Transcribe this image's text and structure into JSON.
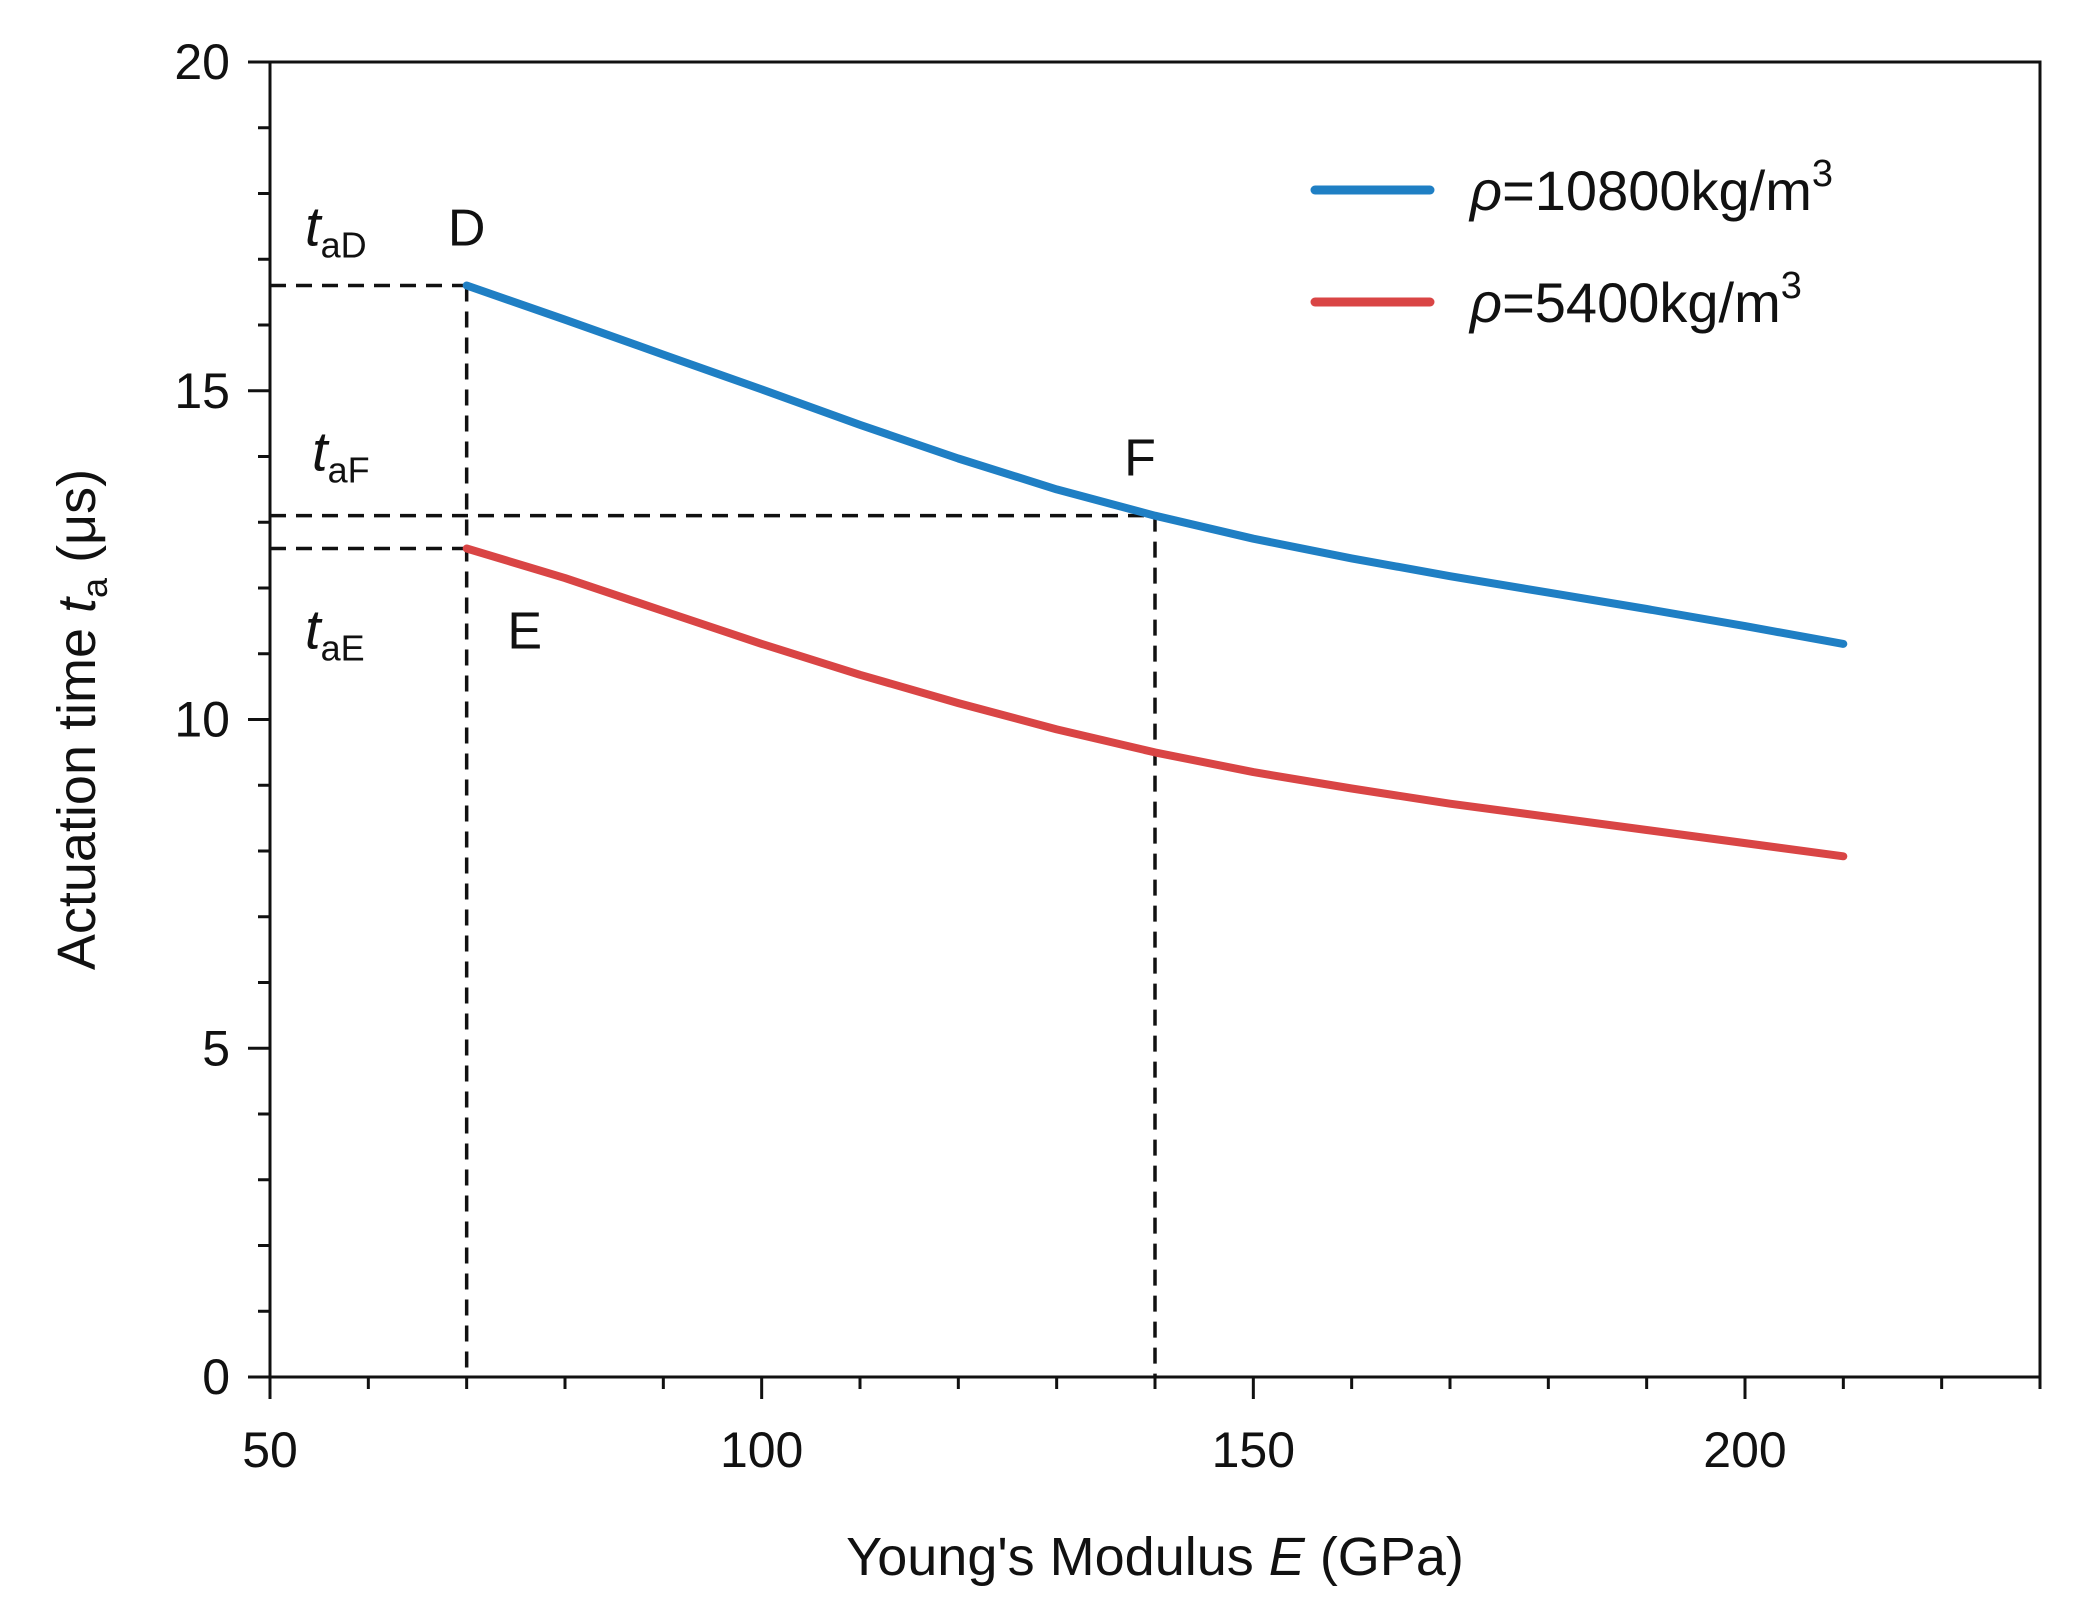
{
  "chart_data": {
    "type": "line",
    "title": "",
    "xlabel": {
      "prefix": "Young's Modulus ",
      "var": "E",
      "suffix": " (GPa)"
    },
    "ylabel": {
      "prefix": "Actuation time ",
      "var": "t",
      "sub": "a",
      "suffix": " (μs)"
    },
    "xlim": [
      50,
      230
    ],
    "ylim": [
      0,
      20
    ],
    "x_ticks": [
      50,
      100,
      150,
      200
    ],
    "x_tick_labels": [
      "50",
      "100",
      "150",
      "200"
    ],
    "x_minor_step": 10,
    "y_ticks": [
      0,
      5,
      10,
      15,
      20
    ],
    "y_tick_labels": [
      "0",
      "5",
      "10",
      "15",
      "20"
    ],
    "y_minor_step": 1,
    "grid": false,
    "legend_position": "top-right",
    "series": [
      {
        "name": "ρ=10800kg/m3",
        "legend": {
          "var": "ρ",
          "text": "=10800kg/m",
          "sup": "3"
        },
        "color": "#1f7fc4",
        "x": [
          70,
          80,
          90,
          100,
          110,
          120,
          130,
          140,
          150,
          160,
          170,
          180,
          190,
          200,
          210
        ],
        "y": [
          16.6,
          16.08,
          15.55,
          15.02,
          14.48,
          13.97,
          13.5,
          13.1,
          12.75,
          12.45,
          12.18,
          11.93,
          11.68,
          11.42,
          11.15
        ]
      },
      {
        "name": "ρ=5400kg/m3",
        "legend": {
          "var": "ρ",
          "text": "=5400kg/m",
          "sup": "3"
        },
        "color": "#d94545",
        "x": [
          70,
          80,
          90,
          100,
          110,
          120,
          130,
          140,
          150,
          160,
          170,
          180,
          190,
          200,
          210
        ],
        "y": [
          12.6,
          12.15,
          11.65,
          11.15,
          10.68,
          10.25,
          9.85,
          9.5,
          9.2,
          8.95,
          8.72,
          8.52,
          8.32,
          8.12,
          7.92
        ]
      }
    ],
    "reference_lines": [
      {
        "x": 70,
        "y_top": 16.6,
        "y_levels": [
          16.6,
          12.6
        ]
      },
      {
        "x": 140,
        "y_top": 13.1,
        "y_levels": [
          13.1
        ]
      }
    ],
    "annotations": [
      {
        "text": "D",
        "x": 70,
        "y": 16.6
      },
      {
        "text": "F",
        "x": 140,
        "y": 13.1
      },
      {
        "text": "E",
        "x": 70,
        "y": 12.6
      }
    ],
    "y_annotations": [
      {
        "var": "t",
        "sub": "aD",
        "y": 16.6
      },
      {
        "var": "t",
        "sub": "aF",
        "y": 13.1
      },
      {
        "var": "t",
        "sub": "aE",
        "y": 12.6
      }
    ]
  }
}
